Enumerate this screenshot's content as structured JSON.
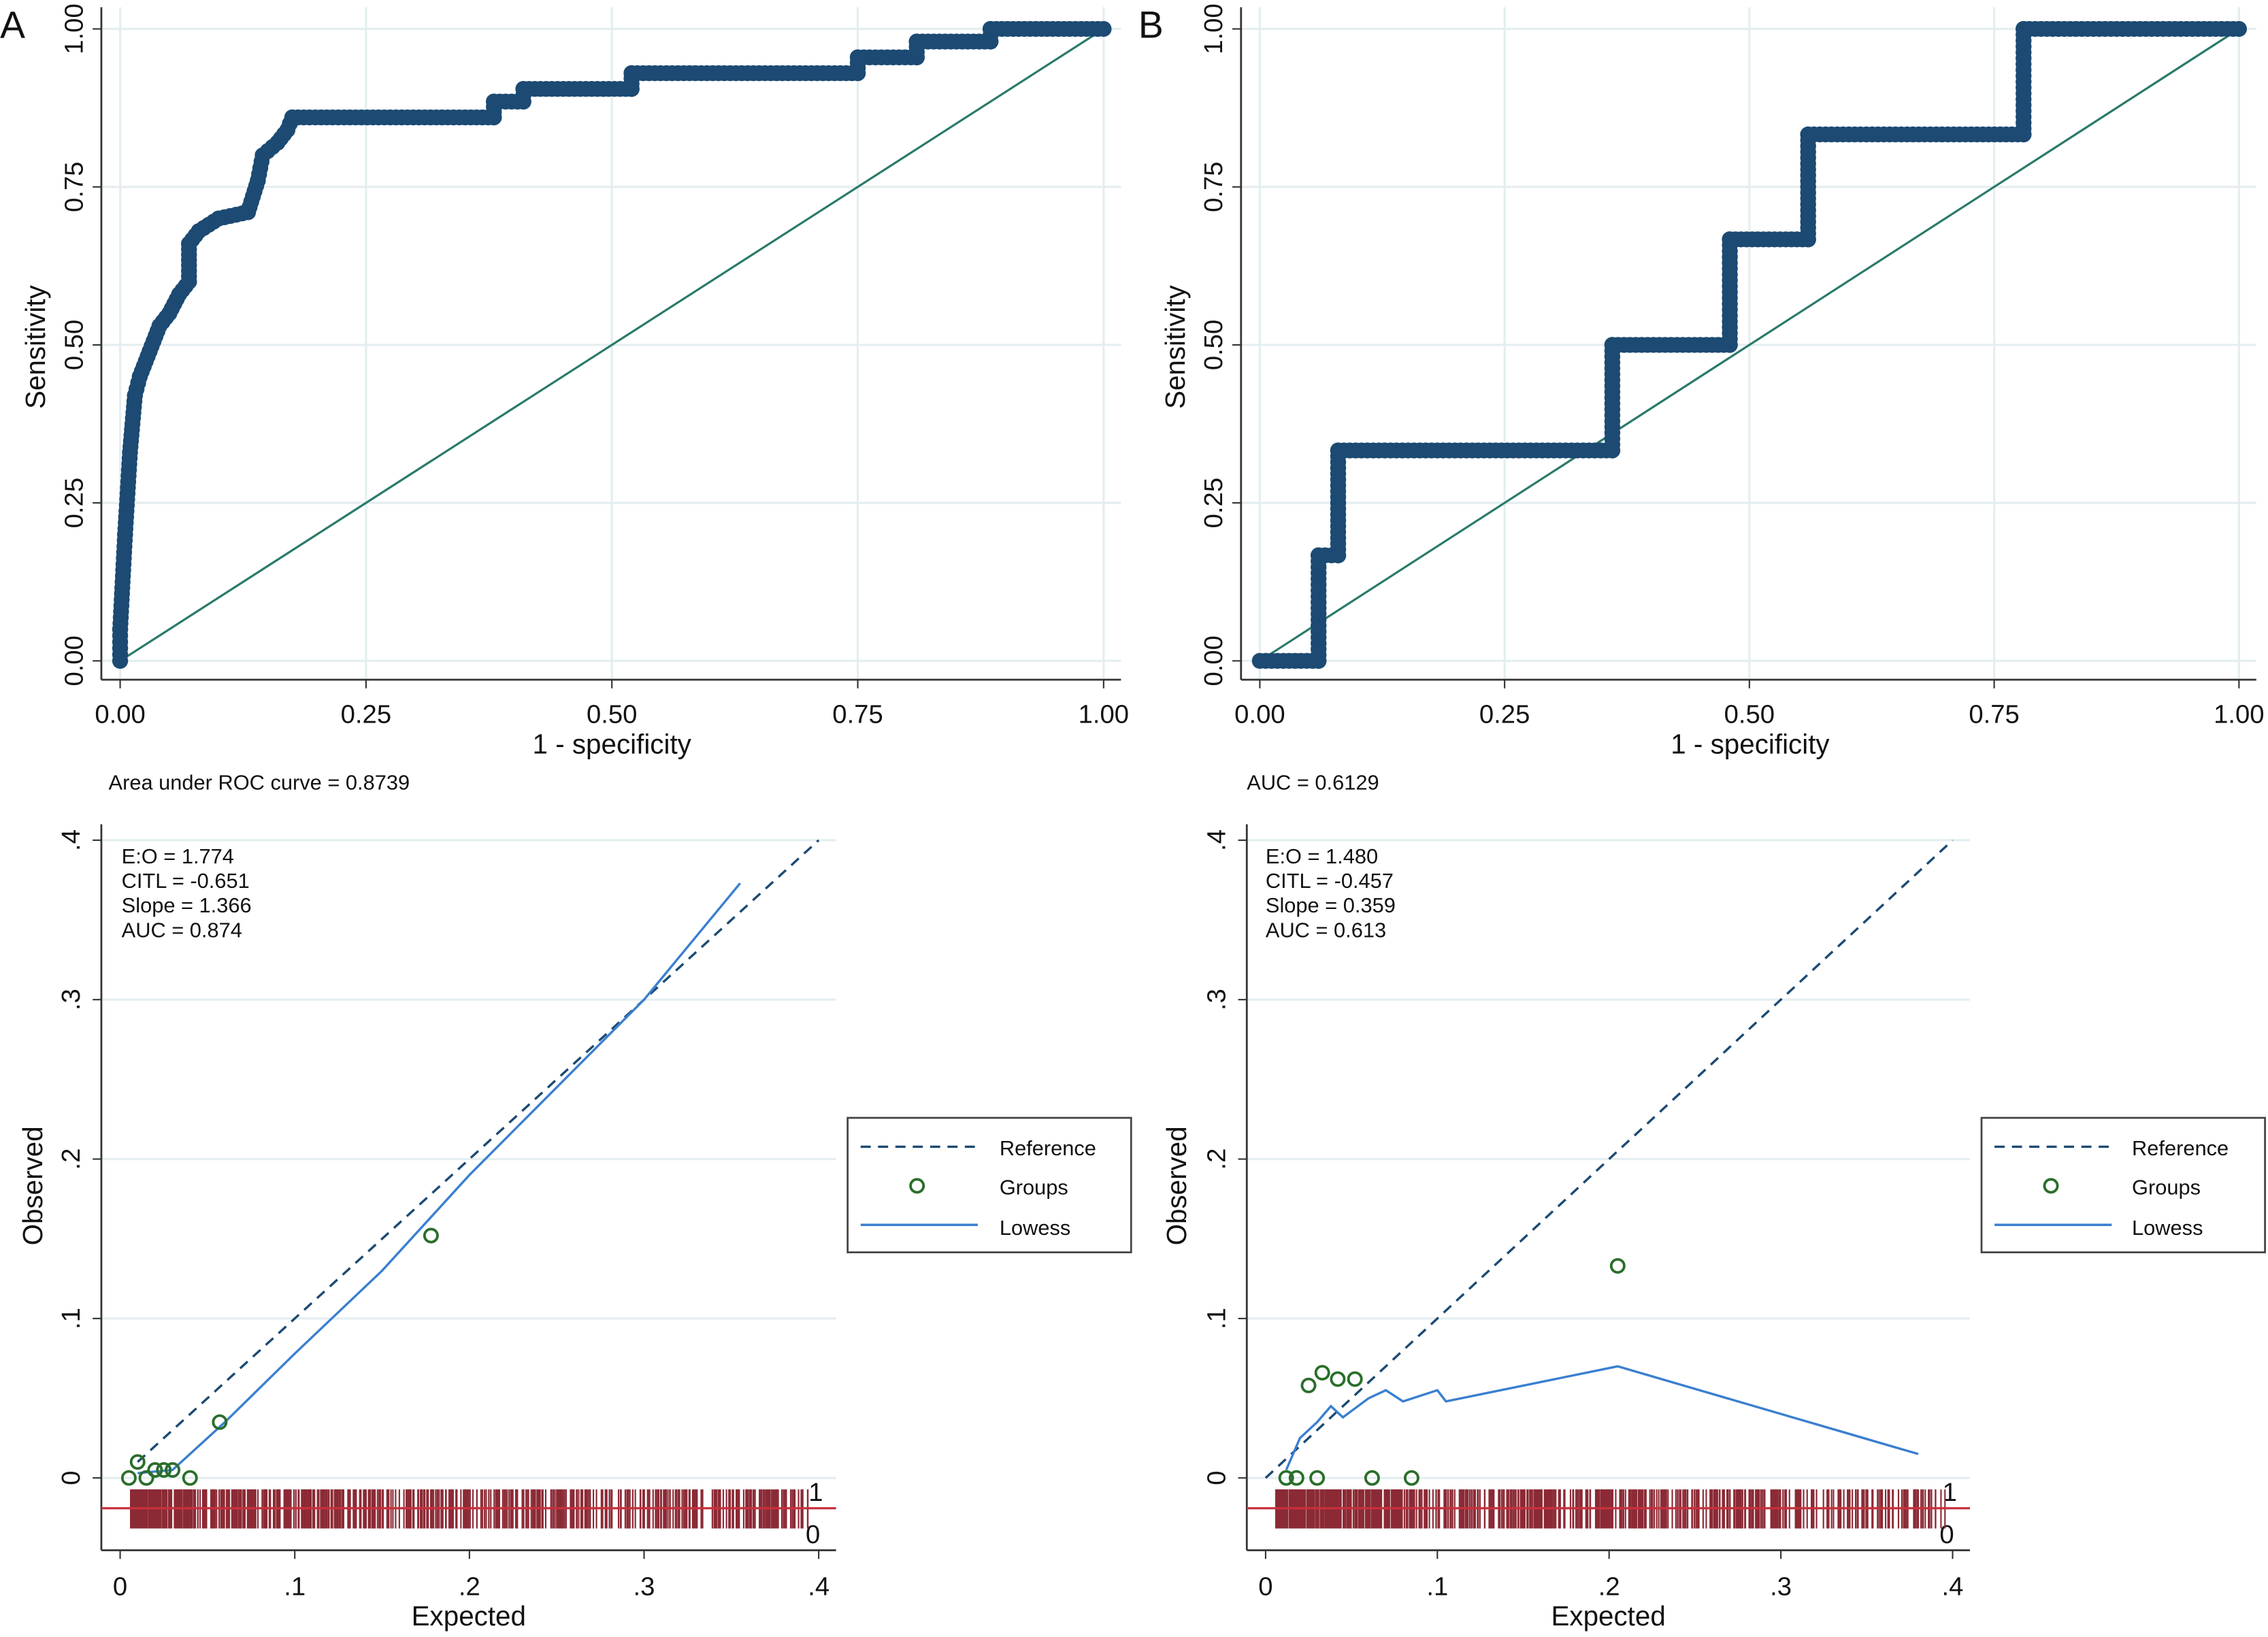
{
  "chart_data": [
    {
      "panel": "A",
      "type": "line",
      "subtype": "roc",
      "xlabel": "1 - specificity",
      "ylabel": "Sensitivity",
      "xlim": [
        0,
        1
      ],
      "ylim": [
        0,
        1
      ],
      "xticks": [
        "0.00",
        "0.25",
        "0.50",
        "0.75",
        "1.00"
      ],
      "yticks": [
        "0.00",
        "0.25",
        "0.50",
        "0.75",
        "1.00"
      ],
      "note": "Area under ROC curve = 0.8739",
      "grid": true,
      "colors": {
        "curve": "#1c4a73",
        "reference": "#2a7a6a"
      },
      "curve": [
        [
          0,
          0
        ],
        [
          0,
          0.05
        ],
        [
          0.005,
          0.2
        ],
        [
          0.01,
          0.33
        ],
        [
          0.015,
          0.42
        ],
        [
          0.02,
          0.45
        ],
        [
          0.03,
          0.49
        ],
        [
          0.04,
          0.53
        ],
        [
          0.05,
          0.55
        ],
        [
          0.06,
          0.58
        ],
        [
          0.07,
          0.6
        ],
        [
          0.07,
          0.66
        ],
        [
          0.08,
          0.68
        ],
        [
          0.1,
          0.7
        ],
        [
          0.13,
          0.71
        ],
        [
          0.14,
          0.76
        ],
        [
          0.145,
          0.8
        ],
        [
          0.16,
          0.82
        ],
        [
          0.17,
          0.84
        ],
        [
          0.175,
          0.86
        ],
        [
          0.38,
          0.86
        ],
        [
          0.38,
          0.885
        ],
        [
          0.41,
          0.885
        ],
        [
          0.41,
          0.905
        ],
        [
          0.52,
          0.905
        ],
        [
          0.52,
          0.93
        ],
        [
          0.75,
          0.93
        ],
        [
          0.75,
          0.955
        ],
        [
          0.81,
          0.955
        ],
        [
          0.81,
          0.98
        ],
        [
          0.885,
          0.98
        ],
        [
          0.885,
          1.0
        ],
        [
          1,
          1
        ]
      ],
      "reference": [
        [
          0,
          0
        ],
        [
          1,
          1
        ]
      ]
    },
    {
      "panel": "B",
      "type": "line",
      "subtype": "roc",
      "xlabel": "1 - specificity",
      "ylabel": "Sensitivity",
      "xlim": [
        0,
        1
      ],
      "ylim": [
        0,
        1
      ],
      "xticks": [
        "0.00",
        "0.25",
        "0.50",
        "0.75",
        "1.00"
      ],
      "yticks": [
        "0.00",
        "0.25",
        "0.50",
        "0.75",
        "1.00"
      ],
      "note": "AUC = 0.6129",
      "grid": true,
      "colors": {
        "curve": "#1c4a73",
        "reference": "#2a7a6a"
      },
      "curve": [
        [
          0,
          0
        ],
        [
          0.06,
          0
        ],
        [
          0.06,
          0.167
        ],
        [
          0.08,
          0.167
        ],
        [
          0.08,
          0.333
        ],
        [
          0.36,
          0.333
        ],
        [
          0.36,
          0.5
        ],
        [
          0.48,
          0.5
        ],
        [
          0.48,
          0.667
        ],
        [
          0.56,
          0.667
        ],
        [
          0.56,
          0.833
        ],
        [
          0.78,
          0.833
        ],
        [
          0.78,
          1
        ],
        [
          1,
          1
        ]
      ],
      "reference": [
        [
          0,
          0
        ],
        [
          1,
          1
        ]
      ]
    },
    {
      "panel": "A-calibration",
      "type": "scatter",
      "xlabel": "Expected",
      "ylabel": "Observed",
      "xlim": [
        0,
        0.4
      ],
      "ylim": [
        0,
        0.4
      ],
      "xticks": [
        "0",
        ".1",
        ".2",
        ".3",
        ".4"
      ],
      "yticks": [
        "0",
        ".1",
        ".2",
        ".3",
        ".4"
      ],
      "stats": [
        "E:O = 1.774",
        "CITL = -0.651",
        "Slope = 1.366",
        "AUC = 0.874"
      ],
      "legend": {
        "position": "right",
        "entries": [
          "Reference",
          "Groups",
          "Lowess"
        ]
      },
      "rug_labels": [
        "1",
        "0"
      ],
      "colors": {
        "reference": "#1c4a73",
        "groups": "#2a6e2a",
        "lowess": "#3a7fcf",
        "rug": "#8b2a35"
      },
      "reference": [
        [
          0.01,
          0.01
        ],
        [
          0.4,
          0.4
        ]
      ],
      "groups": [
        [
          0.005,
          0
        ],
        [
          0.01,
          0.01
        ],
        [
          0.015,
          0
        ],
        [
          0.02,
          0.005
        ],
        [
          0.025,
          0.005
        ],
        [
          0.03,
          0.005
        ],
        [
          0.04,
          0
        ],
        [
          0.057,
          0.035
        ],
        [
          0.178,
          0.152
        ]
      ],
      "lowess": [
        [
          0.01,
          0.003
        ],
        [
          0.03,
          0.005
        ],
        [
          0.06,
          0.035
        ],
        [
          0.1,
          0.078
        ],
        [
          0.15,
          0.13
        ],
        [
          0.2,
          0.19
        ],
        [
          0.25,
          0.245
        ],
        [
          0.3,
          0.3
        ],
        [
          0.355,
          0.373
        ]
      ]
    },
    {
      "panel": "B-calibration",
      "type": "scatter",
      "xlabel": "Expected",
      "ylabel": "Observed",
      "xlim": [
        0,
        0.4
      ],
      "ylim": [
        0,
        0.4
      ],
      "xticks": [
        "0",
        ".1",
        ".2",
        ".3",
        ".4"
      ],
      "yticks": [
        "0",
        ".1",
        ".2",
        ".3",
        ".4"
      ],
      "stats": [
        "E:O = 1.480",
        "CITL = -0.457",
        "Slope = 0.359",
        "AUC = 0.613"
      ],
      "legend": {
        "position": "right",
        "entries": [
          "Reference",
          "Groups",
          "Lowess"
        ]
      },
      "rug_labels": [
        "1",
        "0"
      ],
      "colors": {
        "reference": "#1c4a73",
        "groups": "#2a6e2a",
        "lowess": "#3a7fcf",
        "rug": "#8b2a35"
      },
      "reference": [
        [
          0,
          0
        ],
        [
          0.4,
          0.4
        ]
      ],
      "groups": [
        [
          0.012,
          0
        ],
        [
          0.018,
          0
        ],
        [
          0.03,
          0
        ],
        [
          0.025,
          0.058
        ],
        [
          0.033,
          0.066
        ],
        [
          0.042,
          0.062
        ],
        [
          0.052,
          0.062
        ],
        [
          0.062,
          0
        ],
        [
          0.085,
          0
        ],
        [
          0.205,
          0.133
        ]
      ],
      "lowess": [
        [
          0.012,
          0.005
        ],
        [
          0.02,
          0.025
        ],
        [
          0.03,
          0.035
        ],
        [
          0.038,
          0.045
        ],
        [
          0.045,
          0.038
        ],
        [
          0.06,
          0.05
        ],
        [
          0.07,
          0.055
        ],
        [
          0.08,
          0.048
        ],
        [
          0.1,
          0.055
        ],
        [
          0.105,
          0.048
        ],
        [
          0.205,
          0.07
        ],
        [
          0.38,
          0.015
        ]
      ]
    }
  ]
}
